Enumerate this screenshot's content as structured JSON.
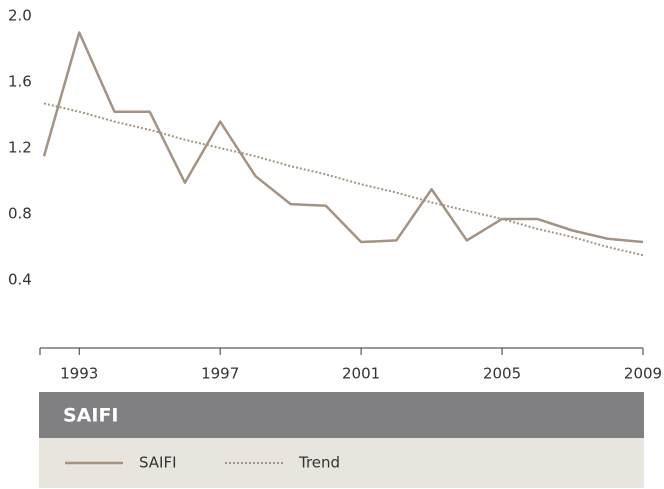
{
  "chart_data": {
    "type": "line",
    "title": "SAIFI",
    "x": [
      1992,
      1993,
      1994,
      1995,
      1996,
      1997,
      1998,
      1999,
      2000,
      2001,
      2002,
      2003,
      2004,
      2005,
      2006,
      2007,
      2008,
      2009
    ],
    "xlim": [
      1992,
      2009
    ],
    "xticks": [
      1993,
      1997,
      2001,
      2005,
      2009
    ],
    "ylim": [
      0,
      2
    ],
    "yticks": [
      0.4,
      0.8,
      1.2,
      1.6,
      {
        "value": 2,
        "label": "2.0"
      }
    ],
    "series": [
      {
        "name": "SAIFI",
        "color": "#a39382",
        "style": "solid",
        "values": [
          1.15,
          1.9,
          1.42,
          1.42,
          0.99,
          1.36,
          1.03,
          0.86,
          0.85,
          0.63,
          0.64,
          0.95,
          0.64,
          0.77,
          0.77,
          0.7,
          0.65,
          0.63
        ]
      },
      {
        "name": "Trend",
        "color": "#a39382",
        "style": "dotted",
        "values": [
          1.47,
          1.42,
          1.36,
          1.31,
          1.25,
          1.2,
          1.15,
          1.09,
          1.04,
          0.98,
          0.93,
          0.87,
          0.82,
          0.77,
          0.71,
          0.66,
          0.6,
          0.55
        ]
      }
    ]
  }
}
